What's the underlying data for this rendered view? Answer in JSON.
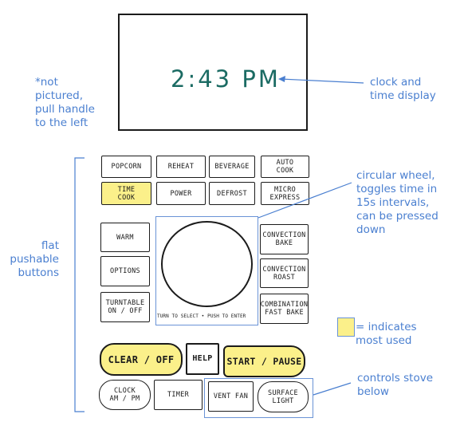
{
  "display": {
    "time": "2:43 PM"
  },
  "notes": {
    "handle": "*not\npictured,\npull handle\nto the left",
    "clock": "clock and\ntime display",
    "wheel": "circular wheel,\ntoggles time in\n15s intervals,\ncan be pressed\ndown",
    "buttons": "flat\npushable\nbuttons",
    "legend": "= indicates\nmost used",
    "controls": "controls stove\nbelow"
  },
  "buttons": {
    "popcorn": "POPCORN",
    "reheat": "REHEAT",
    "beverage": "BEVERAGE",
    "auto_cook": "AUTO\nCOOK",
    "time_cook": "TIME\nCOOK",
    "power": "POWER",
    "defrost": "DEFROST",
    "micro_express": "MICRO\nEXPRESS",
    "warm": "WARM",
    "options": "OPTIONS",
    "turntable": "TURNTABLE\nON / OFF",
    "convection_bake": "CONVECTION\nBAKE",
    "convection_roast": "CONVECTION\nROAST",
    "combination_fast_bake": "COMBINATION\nFAST BAKE",
    "clear_off": "CLEAR / OFF",
    "help": "HELP",
    "start_pause": "START / PAUSE",
    "clock": "CLOCK\nAM / PM",
    "timer": "TIMER",
    "vent_fan": "VENT FAN",
    "surface_light": "SURFACE\nLIGHT"
  },
  "wheel": {
    "caption": "TURN TO SELECT • PUSH TO ENTER"
  },
  "colors": {
    "highlight": "#fbf08a",
    "annotation": "#4a7fd0",
    "display_text": "#1b6b63"
  }
}
